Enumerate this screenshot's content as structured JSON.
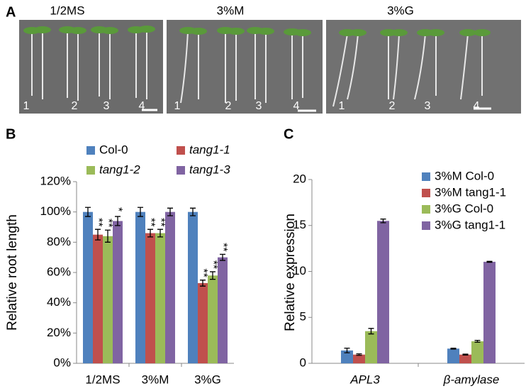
{
  "panel_a": {
    "label": "A",
    "images": [
      {
        "title": "1/2MS",
        "lanes": [
          "1",
          "2",
          "3",
          "4"
        ]
      },
      {
        "title": "3%M",
        "lanes": [
          "1",
          "2",
          "3",
          "4"
        ]
      },
      {
        "title": "3%G",
        "lanes": [
          "1",
          "2",
          "3",
          "4"
        ]
      }
    ]
  },
  "chart_data": [
    {
      "type": "bar",
      "panel": "B",
      "ylabel": "Relative root length",
      "categories": [
        "1/2MS",
        "3%M",
        "3%G"
      ],
      "ylim": [
        0,
        120
      ],
      "yticks": [
        {
          "value": 0,
          "label": "0%"
        },
        {
          "value": 20,
          "label": "20%"
        },
        {
          "value": 40,
          "label": "40%"
        },
        {
          "value": 60,
          "label": "60%"
        },
        {
          "value": 80,
          "label": "80%"
        },
        {
          "value": 100,
          "label": "100%"
        },
        {
          "value": 120,
          "label": "120%"
        }
      ],
      "series": [
        {
          "name": "Col-0",
          "color": "#4f81bd",
          "values": [
            100,
            100,
            100
          ],
          "errors": [
            3,
            3,
            2.5
          ],
          "markers": [
            null,
            null,
            null
          ]
        },
        {
          "name": "tang1-1",
          "color": "#c0504d",
          "values": [
            85,
            86,
            53
          ],
          "errors": [
            3.5,
            2.5,
            2
          ],
          "markers": [
            "**",
            "**",
            "**"
          ]
        },
        {
          "name": "tang1-2",
          "color": "#9bbb59",
          "values": [
            84,
            86,
            58
          ],
          "errors": [
            4,
            2.5,
            2.5
          ],
          "markers": [
            "**",
            "**",
            "**"
          ]
        },
        {
          "name": "tang1-3",
          "color": "#8064a2",
          "values": [
            94,
            100,
            70
          ],
          "errors": [
            3,
            2.5,
            2
          ],
          "markers": [
            "*",
            null,
            "**"
          ]
        }
      ]
    },
    {
      "type": "bar",
      "panel": "C",
      "ylabel": "Relative expression",
      "categories": [
        "APL3",
        "β-amylase"
      ],
      "ylim": [
        0,
        20
      ],
      "yticks": [
        0,
        5,
        10,
        15,
        20
      ],
      "series": [
        {
          "name": "3%M Col-0",
          "color": "#4f81bd",
          "values": [
            1.4,
            1.6
          ],
          "errors": [
            0.25,
            0.05
          ]
        },
        {
          "name": "3%M tang1-1",
          "color": "#c0504d",
          "values": [
            0.95,
            0.95
          ],
          "errors": [
            0.08,
            0.05
          ]
        },
        {
          "name": "3%G Col-0",
          "color": "#9bbb59",
          "values": [
            3.5,
            2.4
          ],
          "errors": [
            0.3,
            0.1
          ]
        },
        {
          "name": "3%G tang1-1",
          "color": "#8064a2",
          "values": [
            15.5,
            11.05
          ],
          "errors": [
            0.2,
            0.05
          ]
        }
      ]
    }
  ]
}
